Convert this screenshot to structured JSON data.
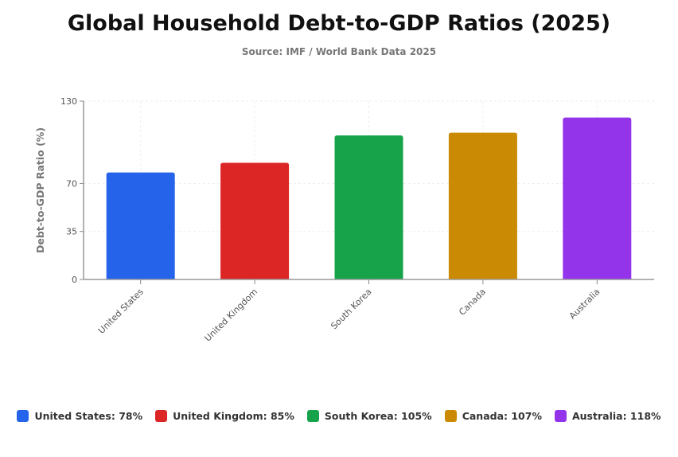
{
  "chart_data": {
    "type": "bar",
    "title": "Global Household Debt-to-GDP Ratios (2025)",
    "subtitle": "Source: IMF / World Bank Data 2025",
    "xlabel": "",
    "ylabel": "Debt-to-GDP Ratio (%)",
    "ylim": [
      0,
      130
    ],
    "yticks": [
      0,
      35,
      70,
      130
    ],
    "grid": true,
    "legend_placement": "bottom",
    "categories": [
      "United States",
      "United Kingdom",
      "South Korea",
      "Canada",
      "Australia"
    ],
    "values": [
      78,
      85,
      105,
      107,
      118
    ],
    "colors": [
      "#2563eb",
      "#dc2626",
      "#16a34a",
      "#ca8a04",
      "#9333ea"
    ],
    "legend": [
      "United States: 78%",
      "United Kingdom: 85%",
      "South Korea: 105%",
      "Canada: 107%",
      "Australia: 118%"
    ]
  }
}
